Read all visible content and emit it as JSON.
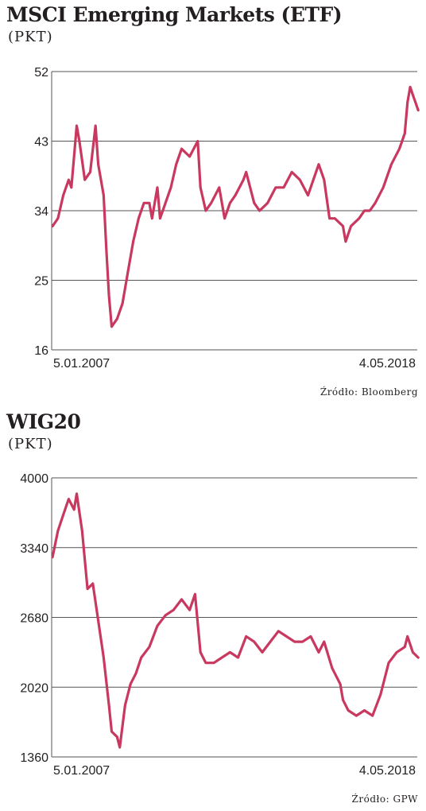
{
  "charts": [
    {
      "title": "MSCI Emerging Markets (ETF)",
      "unit": "(PKT)",
      "source": "Źródło: Bloomberg",
      "colors": {
        "line": "#c8385f",
        "grid": "#555555"
      }
    },
    {
      "title": "WIG20",
      "unit": "(PKT)",
      "source": "Źródło: GPW",
      "colors": {
        "line": "#c8385f",
        "grid": "#555555"
      }
    }
  ],
  "chart_data": [
    {
      "type": "line",
      "title": "MSCI Emerging Markets (ETF)",
      "ylabel": "(PKT)",
      "ylim": [
        16,
        52
      ],
      "yticks": [
        16,
        25,
        34,
        43,
        52
      ],
      "xlim": [
        "2007-01-05",
        "2018-05-04"
      ],
      "xtick_labels": [
        "5.01.2007",
        "4.05.2018"
      ],
      "grid": true,
      "series": [
        {
          "x": [
            "2007-01",
            "2007-03",
            "2007-05",
            "2007-07",
            "2007-08",
            "2007-09",
            "2007-10",
            "2007-11",
            "2008-01",
            "2008-03",
            "2008-05",
            "2008-06",
            "2008-08",
            "2008-09",
            "2008-10",
            "2008-11",
            "2009-01",
            "2009-03",
            "2009-05",
            "2009-07",
            "2009-09",
            "2009-11",
            "2010-01",
            "2010-02",
            "2010-04",
            "2010-05",
            "2010-07",
            "2010-09",
            "2010-11",
            "2011-01",
            "2011-04",
            "2011-07",
            "2011-08",
            "2011-10",
            "2011-12",
            "2012-03",
            "2012-05",
            "2012-07",
            "2012-09",
            "2012-12",
            "2013-01",
            "2013-04",
            "2013-06",
            "2013-09",
            "2013-12",
            "2014-03",
            "2014-06",
            "2014-09",
            "2014-12",
            "2015-04",
            "2015-06",
            "2015-08",
            "2015-10",
            "2016-01",
            "2016-02",
            "2016-04",
            "2016-07",
            "2016-09",
            "2016-11",
            "2017-01",
            "2017-04",
            "2017-07",
            "2017-10",
            "2017-12",
            "2018-01",
            "2018-02",
            "2018-03",
            "2018-05"
          ],
          "y": [
            32,
            33,
            36,
            38,
            37,
            41,
            45,
            43,
            38,
            39,
            45,
            40,
            36,
            29,
            23,
            19,
            20,
            22,
            26,
            30,
            33,
            35,
            35,
            33,
            37,
            33,
            35,
            37,
            40,
            42,
            41,
            43,
            37,
            34,
            35,
            37,
            33,
            35,
            36,
            38,
            39,
            35,
            34,
            35,
            37,
            37,
            39,
            38,
            36,
            40,
            38,
            33,
            33,
            32,
            30,
            32,
            33,
            34,
            34,
            35,
            37,
            40,
            42,
            44,
            48,
            50,
            49,
            47
          ]
        }
      ]
    },
    {
      "type": "line",
      "title": "WIG20",
      "ylabel": "(PKT)",
      "ylim": [
        1360,
        4000
      ],
      "yticks": [
        1360,
        2020,
        2680,
        3340,
        4000
      ],
      "xlim": [
        "2007-01-05",
        "2018-05-04"
      ],
      "xtick_labels": [
        "5.01.2007",
        "4.05.2018"
      ],
      "grid": true,
      "series": [
        {
          "x": [
            "2007-01",
            "2007-03",
            "2007-05",
            "2007-07",
            "2007-09",
            "2007-10",
            "2007-12",
            "2008-02",
            "2008-04",
            "2008-06",
            "2008-08",
            "2008-10",
            "2008-11",
            "2009-01",
            "2009-02",
            "2009-04",
            "2009-06",
            "2009-08",
            "2009-10",
            "2010-01",
            "2010-04",
            "2010-07",
            "2010-10",
            "2011-01",
            "2011-04",
            "2011-06",
            "2011-08",
            "2011-10",
            "2012-01",
            "2012-04",
            "2012-07",
            "2012-10",
            "2013-01",
            "2013-04",
            "2013-07",
            "2013-10",
            "2014-01",
            "2014-04",
            "2014-07",
            "2014-10",
            "2015-01",
            "2015-04",
            "2015-06",
            "2015-09",
            "2015-12",
            "2016-01",
            "2016-03",
            "2016-06",
            "2016-09",
            "2016-12",
            "2017-03",
            "2017-06",
            "2017-09",
            "2017-12",
            "2018-01",
            "2018-03",
            "2018-05"
          ],
          "y": [
            3250,
            3500,
            3650,
            3800,
            3700,
            3850,
            3500,
            2950,
            3000,
            2650,
            2300,
            1850,
            1600,
            1550,
            1450,
            1850,
            2050,
            2150,
            2300,
            2400,
            2600,
            2700,
            2750,
            2850,
            2750,
            2900,
            2350,
            2250,
            2250,
            2300,
            2350,
            2300,
            2500,
            2450,
            2350,
            2450,
            2550,
            2500,
            2450,
            2450,
            2500,
            2350,
            2450,
            2200,
            2050,
            1900,
            1800,
            1750,
            1800,
            1750,
            1950,
            2250,
            2350,
            2400,
            2500,
            2350,
            2300
          ]
        }
      ]
    }
  ]
}
